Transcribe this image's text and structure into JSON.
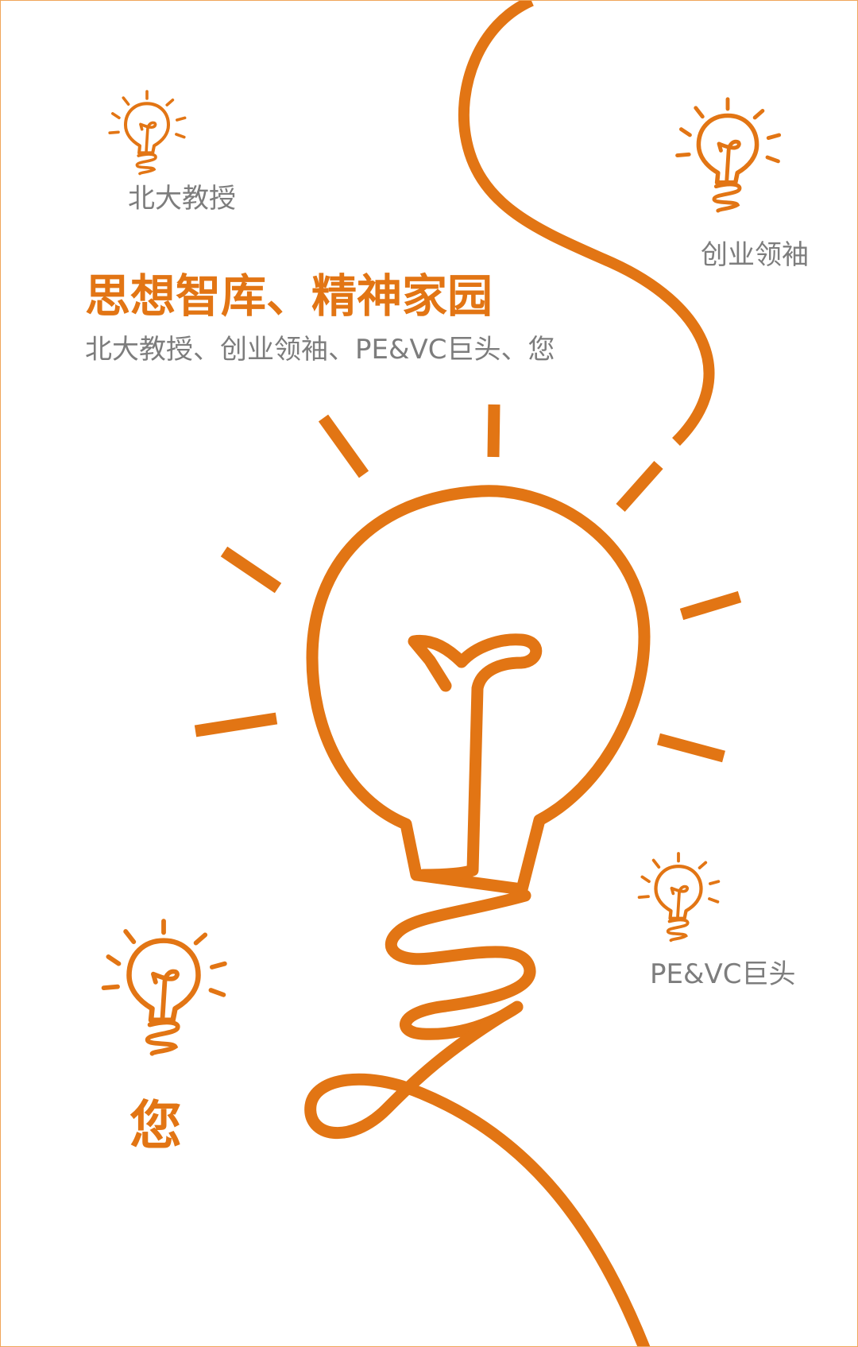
{
  "colors": {
    "accent": "#e27514",
    "text_gray": "#7d7d7d",
    "background": "#ffffff"
  },
  "headline": "思想智库、精神家园",
  "subline": "北大教授、创业领袖、PE&VC巨头、您",
  "bulbs": {
    "professor_label": "北大教授",
    "founder_label": "创业领袖",
    "investor_label": "PE&VC巨头",
    "you_label": "您"
  },
  "icons": {
    "main": "lightbulb-icon",
    "small": "lightbulb-icon",
    "rays": "light-ray-icon"
  }
}
